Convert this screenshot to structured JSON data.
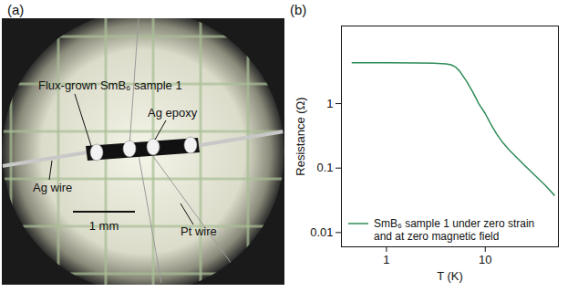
{
  "figure_a": {
    "title": "(a)",
    "labels": [
      "Flux-grown SmB₆ sample 1",
      "Ag epoxy",
      "Ag wire",
      "1 mm",
      "Pt wire"
    ]
  },
  "chart_data": {
    "type": "line",
    "title": "(b)",
    "x_label": "T (K)",
    "y_label": "Resistance (Ω)",
    "log": true,
    "xlim": [
      0.35,
      55
    ],
    "xticks": [
      1,
      10
    ],
    "ylim": [
      0.006,
      16
    ],
    "yticks": [
      0.01,
      0.1,
      1
    ],
    "legend": "bottom-left",
    "series": [
      {
        "name": "SmB₆ sample 1 under zero strain and at zero magnetic field",
        "color": "#2e8b57",
        "x": [
          0.45,
          1,
          2,
          3,
          4,
          4.5,
          5,
          5.5,
          6.5,
          7.5,
          8.6,
          10,
          11.4,
          13,
          15,
          17.5,
          20,
          25,
          31,
          40,
          50
        ],
        "values": [
          4.3,
          4.3,
          4.28,
          4.25,
          4.15,
          4.0,
          3.7,
          3.2,
          2.2,
          1.5,
          1.0,
          0.7,
          0.48,
          0.34,
          0.25,
          0.19,
          0.155,
          0.11,
          0.08,
          0.055,
          0.038
        ]
      }
    ]
  }
}
